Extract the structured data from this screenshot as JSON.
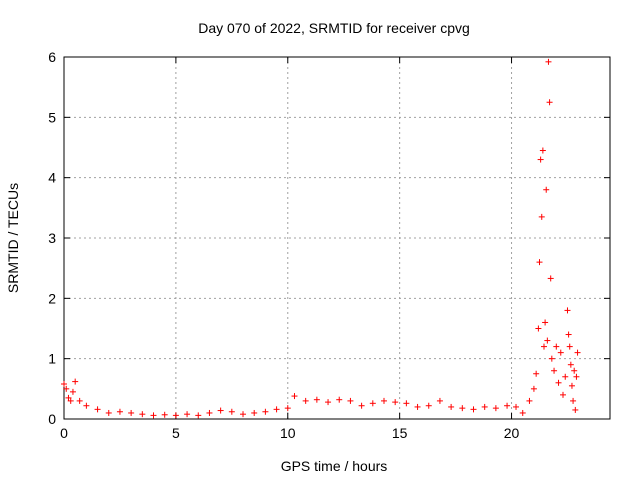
{
  "chart_data": {
    "type": "scatter",
    "title": "Day 070 of 2022, SRMTID for receiver cpvg",
    "xlabel": "GPS time / hours",
    "ylabel": "SRMTID / TECUs",
    "xlim": [
      0,
      24.4
    ],
    "ylim": [
      0,
      6
    ],
    "xticks": [
      0,
      5,
      10,
      15,
      20
    ],
    "yticks": [
      0,
      1,
      2,
      3,
      4,
      5,
      6
    ],
    "grid": true,
    "marker": "+",
    "marker_color": "#ff0000",
    "series": [
      {
        "name": "SRMTID",
        "x": [
          0.0,
          0.1,
          0.2,
          0.3,
          0.4,
          0.5,
          0.7,
          1.0,
          1.5,
          2.0,
          2.5,
          3.0,
          3.5,
          4.0,
          4.5,
          5.0,
          5.5,
          6.0,
          6.5,
          7.0,
          7.5,
          8.0,
          8.5,
          9.0,
          9.5,
          10.0,
          10.3,
          10.8,
          11.3,
          11.8,
          12.3,
          12.8,
          13.3,
          13.8,
          14.3,
          14.8,
          15.3,
          15.8,
          16.3,
          16.8,
          17.3,
          17.8,
          18.3,
          18.8,
          19.3,
          19.8,
          20.2,
          20.5,
          20.8,
          21.0,
          21.1,
          21.2,
          21.25,
          21.3,
          21.35,
          21.4,
          21.45,
          21.5,
          21.55,
          21.6,
          21.65,
          21.7,
          21.75,
          21.8,
          21.9,
          22.0,
          22.1,
          22.2,
          22.3,
          22.4,
          22.5,
          22.55,
          22.6,
          22.65,
          22.7,
          22.75,
          22.8,
          22.85,
          22.9,
          22.95
        ],
        "y": [
          0.58,
          0.5,
          0.35,
          0.3,
          0.45,
          0.62,
          0.3,
          0.22,
          0.16,
          0.1,
          0.12,
          0.1,
          0.08,
          0.06,
          0.07,
          0.06,
          0.08,
          0.06,
          0.1,
          0.14,
          0.12,
          0.08,
          0.1,
          0.12,
          0.16,
          0.18,
          0.38,
          0.3,
          0.32,
          0.28,
          0.32,
          0.3,
          0.22,
          0.26,
          0.3,
          0.28,
          0.26,
          0.2,
          0.22,
          0.3,
          0.2,
          0.18,
          0.16,
          0.2,
          0.18,
          0.22,
          0.2,
          0.1,
          0.3,
          0.5,
          0.75,
          1.5,
          2.6,
          4.3,
          3.35,
          4.45,
          1.2,
          1.6,
          3.8,
          1.3,
          5.92,
          5.25,
          2.33,
          1.0,
          0.8,
          1.2,
          0.6,
          1.1,
          0.4,
          0.7,
          1.8,
          1.4,
          1.2,
          0.9,
          0.55,
          0.3,
          0.8,
          0.15,
          0.7,
          1.1
        ]
      }
    ]
  }
}
